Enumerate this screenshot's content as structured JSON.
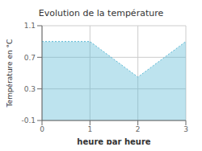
{
  "chart_data": {
    "type": "area",
    "title": "Evolution de la température",
    "x_label": "heure par heure",
    "y_label": "Température en °C",
    "x": [
      0,
      1,
      2,
      3
    ],
    "values": [
      0.9,
      0.9,
      0.45,
      0.9
    ],
    "xlim": [
      0,
      3
    ],
    "ylim": [
      -0.1,
      1.1
    ],
    "xticks": [
      0,
      1,
      2,
      3
    ],
    "yticks": [
      -0.1,
      0.3,
      0.7,
      1.1
    ],
    "color": "#5ab8d5",
    "line_style": "dotted",
    "grid": true
  }
}
